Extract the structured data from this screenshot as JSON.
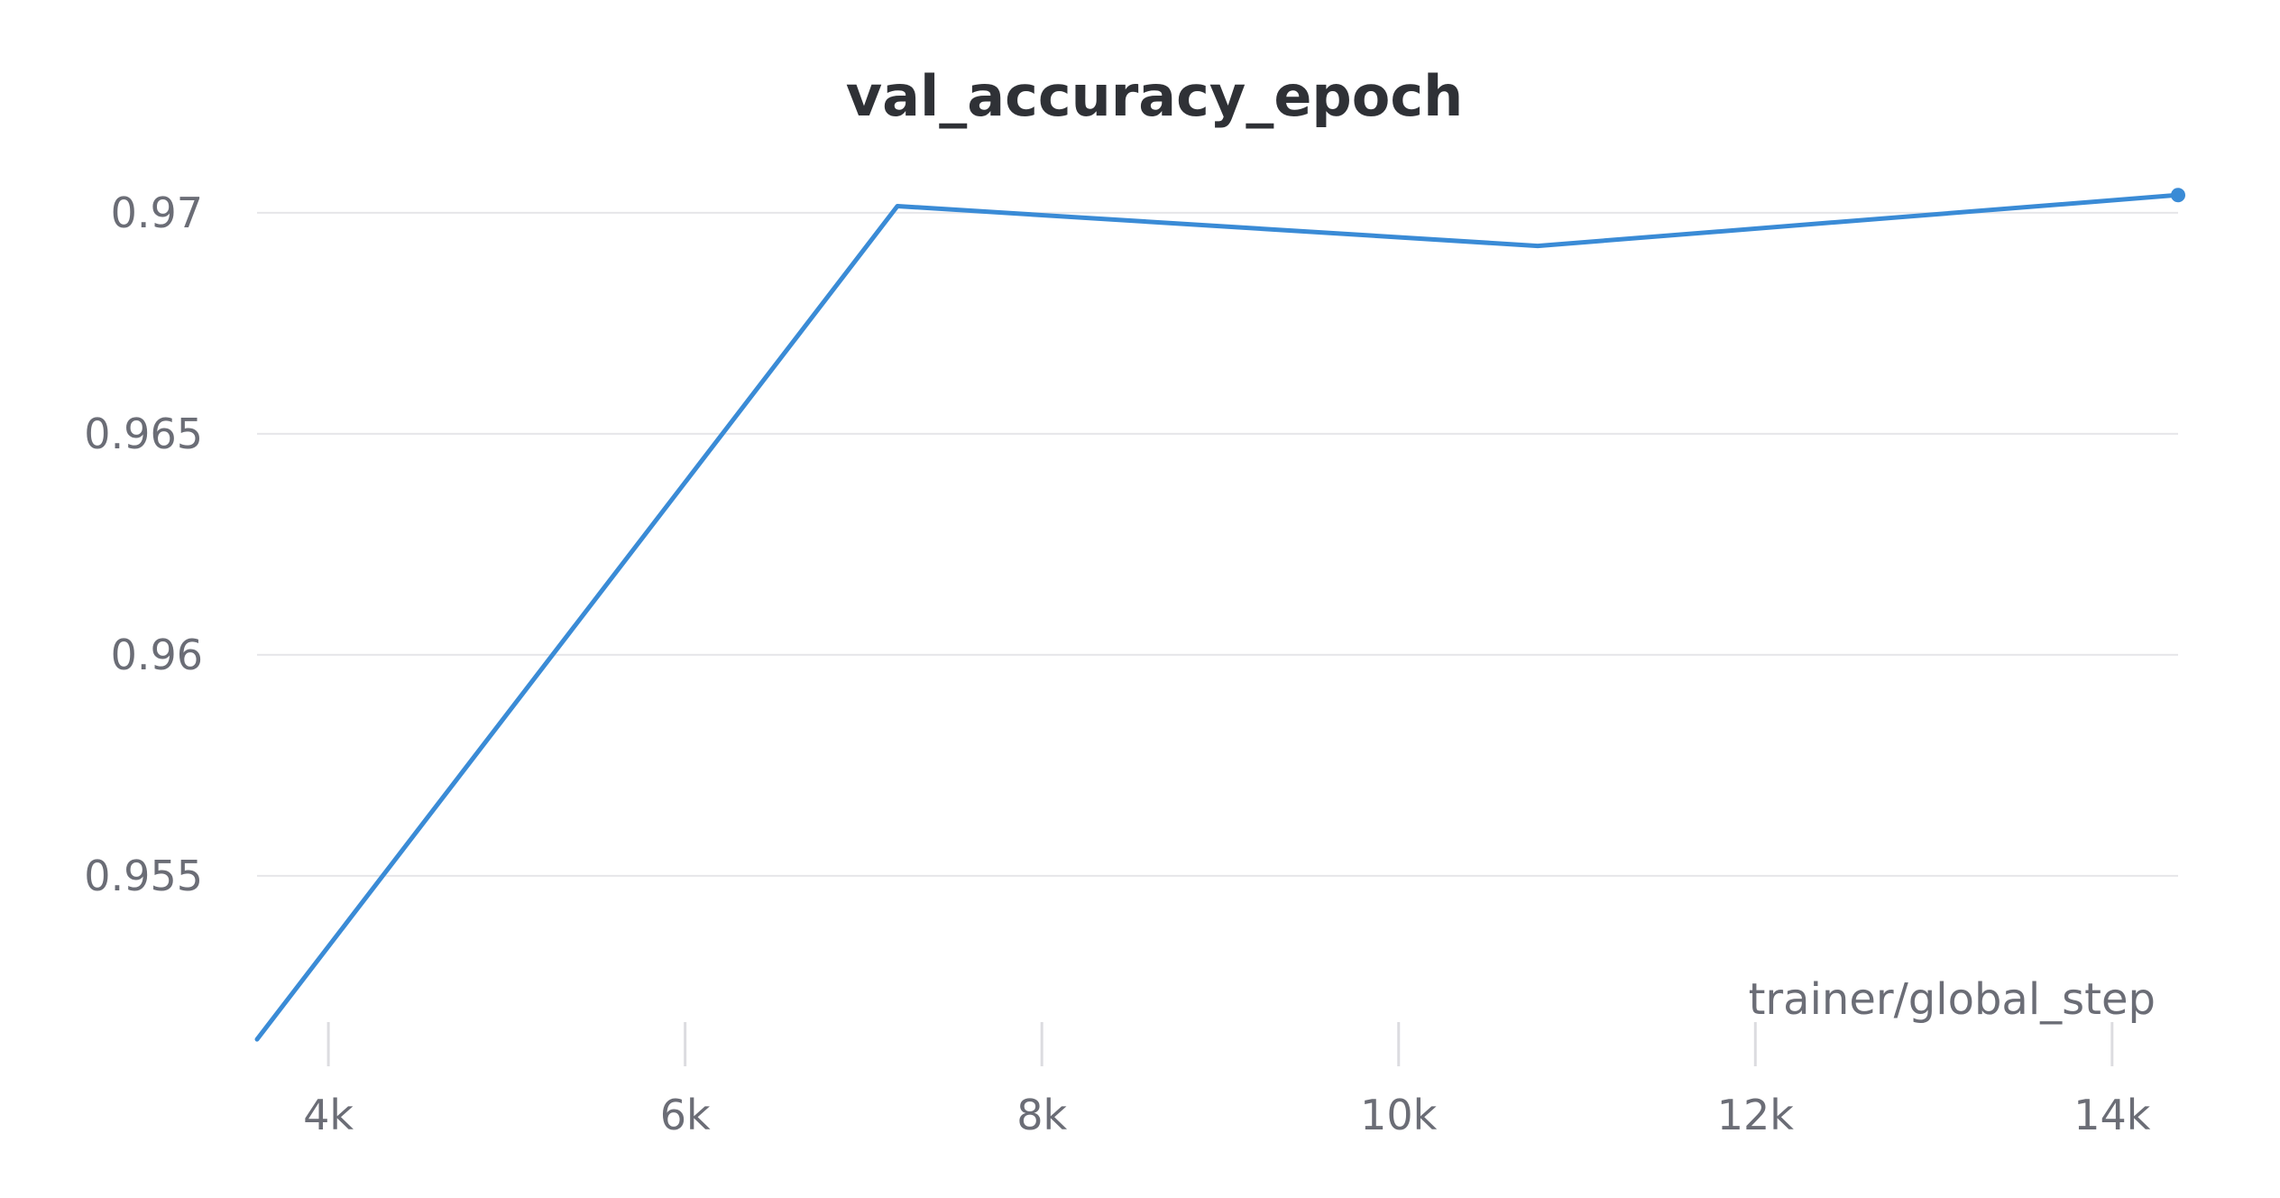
{
  "chart_data": {
    "type": "line",
    "title": "val_accuracy_epoch",
    "xlabel": "trainer/global_step",
    "ylabel": "",
    "xlim": [
      3600,
      14370
    ],
    "ylim": [
      0.95118,
      0.97118
    ],
    "x_ticks": [
      {
        "value": 4000,
        "label": "4k"
      },
      {
        "value": 6000,
        "label": "6k"
      },
      {
        "value": 8000,
        "label": "8k"
      },
      {
        "value": 10000,
        "label": "10k"
      },
      {
        "value": 12000,
        "label": "12k"
      },
      {
        "value": 14000,
        "label": "14k"
      }
    ],
    "y_ticks": [
      {
        "value": 0.955,
        "label": "0.955"
      },
      {
        "value": 0.96,
        "label": "0.96"
      },
      {
        "value": 0.965,
        "label": "0.965"
      },
      {
        "value": 0.97,
        "label": "0.97"
      }
    ],
    "grid": true,
    "legend": "none",
    "series": [
      {
        "color": "#3a8bd6",
        "x": [
          3600,
          7190,
          10780,
          14370
        ],
        "y": [
          0.9513,
          0.97015,
          0.96925,
          0.9704
        ]
      }
    ]
  }
}
